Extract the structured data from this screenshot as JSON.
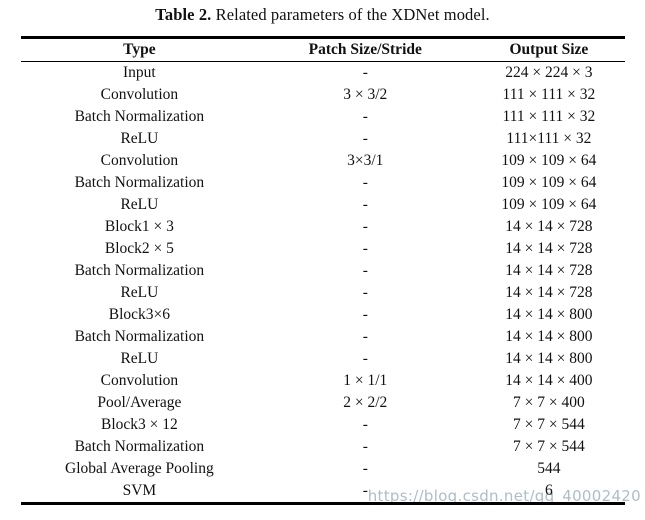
{
  "title": {
    "label": "Table 2.",
    "text": " Related parameters of the XDNet model."
  },
  "table": {
    "columns": [
      "Type",
      "Patch Size/Stride",
      "Output Size"
    ],
    "rows": [
      [
        "Input",
        "-",
        "224 × 224 × 3"
      ],
      [
        "Convolution",
        "3 × 3/2",
        "111 × 111 × 32"
      ],
      [
        "Batch Normalization",
        "-",
        "111 × 111 × 32"
      ],
      [
        "ReLU",
        "-",
        "111×111 × 32"
      ],
      [
        "Convolution",
        "3×3/1",
        "109 × 109 × 64"
      ],
      [
        "Batch Normalization",
        "-",
        "109 × 109 × 64"
      ],
      [
        "ReLU",
        "-",
        "109 × 109 × 64"
      ],
      [
        "Block1 × 3",
        "-",
        "14 × 14 × 728"
      ],
      [
        "Block2 × 5",
        "-",
        "14 × 14 × 728"
      ],
      [
        "Batch Normalization",
        "-",
        "14 × 14 × 728"
      ],
      [
        "ReLU",
        "-",
        "14 × 14 × 728"
      ],
      [
        "Block3×6",
        "-",
        "14 × 14 × 800"
      ],
      [
        "Batch Normalization",
        "-",
        "14 × 14 × 800"
      ],
      [
        "ReLU",
        "-",
        "14 × 14 × 800"
      ],
      [
        "Convolution",
        "1 × 1/1",
        "14 × 14 × 400"
      ],
      [
        "Pool/Average",
        "2 × 2/2",
        "7 × 7 × 400"
      ],
      [
        "Block3 × 12",
        "-",
        "7 × 7 × 544"
      ],
      [
        "Batch Normalization",
        "-",
        "7 × 7 × 544"
      ],
      [
        "Global Average Pooling",
        "-",
        "544"
      ],
      [
        "SVM",
        "-",
        "6"
      ]
    ]
  },
  "watermark": {
    "text": "https://blog.csdn.net/qq_40002420",
    "color": "#aebdc8"
  },
  "colors": {
    "text": "#111111",
    "background": "#ffffff",
    "rule": "#000000"
  }
}
